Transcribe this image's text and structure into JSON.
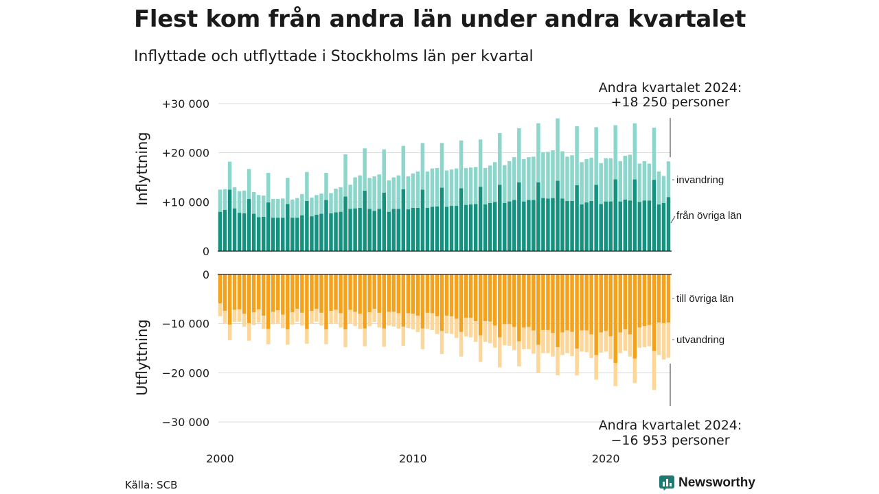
{
  "title": "Flest kom från andra län under andra kvartalet",
  "subtitle": "Inflyttade och utflyttade i Stockholms län per kvartal",
  "source": "Källa: SCB",
  "brand": "Newsworthy",
  "colors": {
    "inflow_other_county": "#14917f",
    "inflow_immigration": "#8dd6cb",
    "outflow_other_county": "#f4a21b",
    "outflow_emigration": "#fcd799",
    "gridline": "#d9d9d9",
    "brand": "#1d7c72"
  },
  "chart_data": {
    "type": "bar",
    "x_start_year": 2000,
    "x_ticks": [
      "2000",
      "2010",
      "2020"
    ],
    "panels": [
      {
        "ylabel": "Inflyttning",
        "ylim": [
          0,
          30000
        ],
        "yticks": [
          0,
          10000,
          20000,
          30000
        ],
        "ytick_labels": [
          "0",
          "+10 000",
          "+20 000",
          "+30 000"
        ],
        "series": [
          {
            "name": "från övriga län",
            "values": [
              8000,
              8400,
              12500,
              8700,
              7800,
              7700,
              10600,
              7600,
              6900,
              7000,
              9900,
              6800,
              6800,
              6800,
              9600,
              6800,
              6800,
              7300,
              10200,
              7100,
              7400,
              7600,
              10400,
              7700,
              7900,
              8000,
              11100,
              8600,
              8700,
              8800,
              12300,
              8600,
              8200,
              8600,
              11900,
              8000,
              8600,
              8600,
              12600,
              8500,
              8800,
              8800,
              12500,
              8800,
              9000,
              9100,
              12900,
              9000,
              9200,
              9200,
              12800,
              9400,
              9500,
              9600,
              13100,
              9500,
              9800,
              10000,
              13500,
              9800,
              10100,
              10400,
              14000,
              10100,
              10400,
              10400,
              14000,
              10800,
              10700,
              10800,
              14300,
              10700,
              10200,
              10200,
              13400,
              9500,
              9900,
              10200,
              13500,
              9600,
              10100,
              10100,
              14600,
              10100,
              10500,
              10300,
              14600,
              10000,
              10300,
              10300,
              14500,
              9500,
              9800,
              11000
            ]
          },
          {
            "name": "invandring",
            "values": [
              4500,
              4200,
              5700,
              4300,
              4400,
              4600,
              6100,
              4400,
              4500,
              4300,
              6000,
              3800,
              3800,
              3900,
              5300,
              3700,
              4000,
              4300,
              5900,
              3800,
              4000,
              4100,
              5500,
              4100,
              4800,
              5000,
              8600,
              4900,
              6300,
              6600,
              8600,
              6300,
              7000,
              7000,
              8800,
              6400,
              6400,
              6800,
              8800,
              6700,
              7000,
              7400,
              9500,
              7400,
              7800,
              7800,
              9100,
              7400,
              7400,
              7600,
              9700,
              7500,
              7500,
              7500,
              9600,
              7400,
              7600,
              8100,
              10500,
              7700,
              8200,
              8700,
              11000,
              8600,
              8700,
              8800,
              12000,
              9300,
              9500,
              9700,
              12700,
              9600,
              9000,
              9300,
              12000,
              8600,
              8800,
              8800,
              11700,
              8300,
              8800,
              8800,
              11000,
              8200,
              8900,
              9300,
              11400,
              7800,
              8000,
              7500,
              10600,
              6700,
              5500,
              7250
            ]
          }
        ]
      },
      {
        "ylabel": "Utflyttning",
        "ylim": [
          -30000,
          0
        ],
        "yticks": [
          0,
          -10000,
          -20000,
          -30000
        ],
        "ytick_labels": [
          "0",
          "−10 000",
          "−20 000",
          "−30 000"
        ],
        "series": [
          {
            "name": "till övriga län",
            "values": [
              -5900,
              -7400,
              -10200,
              -7200,
              -7100,
              -8000,
              -9900,
              -7700,
              -7100,
              -8400,
              -11100,
              -7600,
              -7300,
              -8200,
              -11200,
              -7700,
              -7000,
              -7800,
              -11100,
              -7400,
              -7000,
              -7800,
              -11200,
              -7400,
              -7200,
              -7900,
              -11200,
              -7200,
              -7600,
              -8000,
              -11000,
              -7700,
              -7000,
              -7800,
              -11000,
              -7600,
              -7600,
              -7900,
              -10600,
              -7900,
              -8000,
              -8400,
              -11000,
              -7800,
              -7900,
              -8500,
              -11500,
              -8400,
              -8500,
              -9000,
              -11700,
              -8800,
              -8800,
              -9500,
              -12400,
              -9500,
              -9600,
              -10400,
              -12800,
              -10100,
              -10100,
              -10700,
              -13600,
              -10800,
              -10700,
              -11400,
              -14300,
              -11300,
              -11300,
              -11900,
              -14800,
              -11800,
              -11400,
              -11700,
              -15100,
              -11400,
              -11400,
              -12200,
              -16400,
              -11800,
              -11500,
              -12600,
              -18000,
              -11800,
              -11200,
              -12200,
              -17100,
              -10800,
              -10500,
              -10300,
              -15600,
              -9800,
              -9900,
              -9800
            ]
          },
          {
            "name": "utvandring",
            "values": [
              -2600,
              -2500,
              -3200,
              -2500,
              -2500,
              -2600,
              -3600,
              -2600,
              -2700,
              -2700,
              -3100,
              -2500,
              -2600,
              -2700,
              -3100,
              -2500,
              -2600,
              -2600,
              -3000,
              -2500,
              -2600,
              -2600,
              -3000,
              -2600,
              -2700,
              -2900,
              -3600,
              -2700,
              -2900,
              -3100,
              -3600,
              -2800,
              -2700,
              -3000,
              -3700,
              -2800,
              -3000,
              -3100,
              -3900,
              -3000,
              -3200,
              -3300,
              -4200,
              -3300,
              -3400,
              -3600,
              -4700,
              -3600,
              -3600,
              -3900,
              -5000,
              -3800,
              -4000,
              -4200,
              -5400,
              -4200,
              -4400,
              -4500,
              -6100,
              -4300,
              -4400,
              -4700,
              -5100,
              -4400,
              -4500,
              -4700,
              -5700,
              -4700,
              -4700,
              -4800,
              -5700,
              -4600,
              -4600,
              -4900,
              -5400,
              -4300,
              -4400,
              -4800,
              -5000,
              -4100,
              -4200,
              -4600,
              -4700,
              -4200,
              -4300,
              -4500,
              -5000,
              -4100,
              -4300,
              -4300,
              -7900,
              -6600,
              -7400,
              -7153
            ]
          }
        ]
      }
    ],
    "annotations": [
      {
        "line1": "Andra kvartalet 2024:",
        "line2": "+18 250 personer",
        "value": 18250
      },
      {
        "line1": "Andra kvartalet 2024:",
        "line2": "−16 953 personer",
        "value": -16953
      }
    ]
  }
}
